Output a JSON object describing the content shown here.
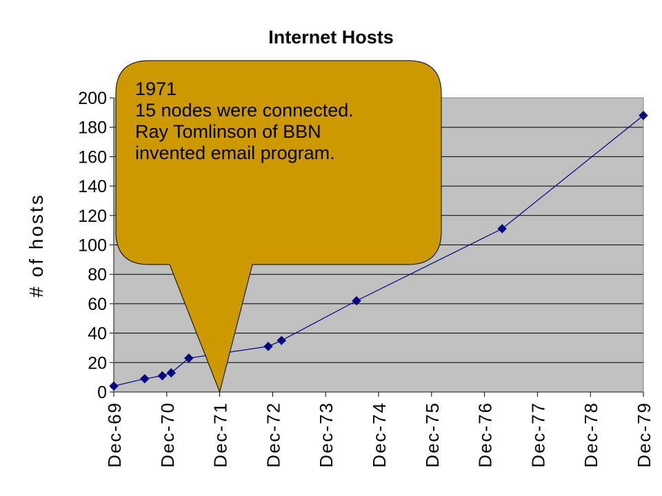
{
  "chart_data": {
    "type": "line",
    "title": "Internet Hosts",
    "ylabel": "# of hosts",
    "xlabel": "",
    "ylim": [
      0,
      200
    ],
    "yticks": [
      0,
      20,
      40,
      60,
      80,
      100,
      120,
      140,
      160,
      180,
      200
    ],
    "xlim": [
      "1969-12",
      "1979-12"
    ],
    "xtick_labels": [
      "Dec-69",
      "Dec-70",
      "Dec-71",
      "Dec-72",
      "Dec-73",
      "Dec-74",
      "Dec-75",
      "Dec-76",
      "Dec-77",
      "Dec-78",
      "Dec-79"
    ],
    "grid": "horizontal",
    "legend": "none",
    "series": [
      {
        "color": "#000080",
        "marker": "diamond",
        "points": [
          {
            "x": "1969-12",
            "y": 4
          },
          {
            "x": "1970-07",
            "y": 9
          },
          {
            "x": "1970-11",
            "y": 11
          },
          {
            "x": "1971-01",
            "y": 13
          },
          {
            "x": "1971-05",
            "y": 23
          },
          {
            "x": "1972-11",
            "y": 31
          },
          {
            "x": "1973-02",
            "y": 35
          },
          {
            "x": "1974-07",
            "y": 62
          },
          {
            "x": "1977-04",
            "y": 111
          },
          {
            "x": "1979-12",
            "y": 188
          }
        ]
      }
    ],
    "annotation": {
      "lines": [
        "1971",
        "15 nodes were connected.",
        "Ray Tomlinson of BBN",
        "invented email program."
      ],
      "points_to": {
        "x": "1971-12",
        "y": 0
      },
      "fill": "#CC9900"
    },
    "plot_background": "#C0C0C0"
  }
}
